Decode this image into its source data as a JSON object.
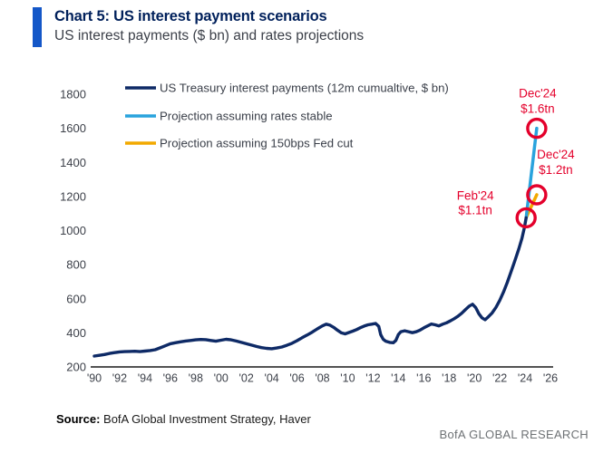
{
  "header": {
    "title": "Chart 5: US interest payment scenarios",
    "subtitle": "US interest payments ($ bn) and rates projections"
  },
  "footer": {
    "source_label": "Source:",
    "source_text": " BofA Global Investment Strategy, Haver",
    "brand": "BofA GLOBAL RESEARCH"
  },
  "colors": {
    "accent_bar": "#1457c8",
    "title_navy": "#00205b",
    "treasury_navy": "#0e2a66",
    "projection_blue": "#29a3dd",
    "projection_orange": "#f2a900",
    "annotation_red": "#e4002b",
    "axis_text": "#3c4049",
    "brand_gray": "#6e7275"
  },
  "chart_data": {
    "type": "line",
    "title": "Chart 5: US interest payment scenarios",
    "subtitle": "US interest payments ($ bn) and rates projections",
    "xlabel": "",
    "ylabel": "",
    "grid": false,
    "legend_position": "top-left",
    "x_range": [
      1990,
      2026
    ],
    "y_range": [
      200,
      1800
    ],
    "y_ticks": [
      1800,
      1600,
      1400,
      1200,
      1000,
      800,
      600,
      400,
      200
    ],
    "x_ticks": [
      {
        "year": 1990,
        "label": "'90"
      },
      {
        "year": 1992,
        "label": "'92"
      },
      {
        "year": 1994,
        "label": "'94"
      },
      {
        "year": 1996,
        "label": "'96"
      },
      {
        "year": 1998,
        "label": "'98"
      },
      {
        "year": 2000,
        "label": "'00"
      },
      {
        "year": 2002,
        "label": "'02"
      },
      {
        "year": 2004,
        "label": "'04"
      },
      {
        "year": 2006,
        "label": "'06"
      },
      {
        "year": 2008,
        "label": "'08"
      },
      {
        "year": 2010,
        "label": "'10"
      },
      {
        "year": 2012,
        "label": "'12"
      },
      {
        "year": 2014,
        "label": "'14"
      },
      {
        "year": 2016,
        "label": "'16"
      },
      {
        "year": 2018,
        "label": "'18"
      },
      {
        "year": 2020,
        "label": "'20"
      },
      {
        "year": 2022,
        "label": "'22"
      },
      {
        "year": 2024,
        "label": "'24"
      },
      {
        "year": 2026,
        "label": "'26"
      }
    ],
    "series": [
      {
        "name": "US Treasury interest payments (12m cumualtive, $ bn)",
        "color": "#0e2a66",
        "points": [
          [
            1990.0,
            264
          ],
          [
            1990.4,
            268
          ],
          [
            1990.8,
            273
          ],
          [
            1991.2,
            279
          ],
          [
            1991.6,
            284
          ],
          [
            1992.0,
            288
          ],
          [
            1992.4,
            290
          ],
          [
            1992.8,
            291
          ],
          [
            1993.2,
            292
          ],
          [
            1993.6,
            290
          ],
          [
            1994.0,
            293
          ],
          [
            1994.4,
            296
          ],
          [
            1994.8,
            301
          ],
          [
            1995.2,
            312
          ],
          [
            1995.6,
            324
          ],
          [
            1996.0,
            336
          ],
          [
            1996.4,
            342
          ],
          [
            1996.8,
            347
          ],
          [
            1997.2,
            352
          ],
          [
            1997.6,
            355
          ],
          [
            1998.0,
            359
          ],
          [
            1998.4,
            361
          ],
          [
            1998.8,
            360
          ],
          [
            1999.2,
            355
          ],
          [
            1999.6,
            351
          ],
          [
            2000.0,
            357
          ],
          [
            2000.4,
            362
          ],
          [
            2000.8,
            359
          ],
          [
            2001.2,
            352
          ],
          [
            2001.6,
            344
          ],
          [
            2002.0,
            336
          ],
          [
            2002.4,
            328
          ],
          [
            2002.8,
            320
          ],
          [
            2003.2,
            313
          ],
          [
            2003.6,
            309
          ],
          [
            2004.0,
            307
          ],
          [
            2004.4,
            311
          ],
          [
            2004.8,
            317
          ],
          [
            2005.2,
            327
          ],
          [
            2005.6,
            339
          ],
          [
            2006.0,
            354
          ],
          [
            2006.4,
            371
          ],
          [
            2006.8,
            387
          ],
          [
            2007.2,
            404
          ],
          [
            2007.6,
            423
          ],
          [
            2008.0,
            441
          ],
          [
            2008.3,
            451
          ],
          [
            2008.6,
            445
          ],
          [
            2008.9,
            432
          ],
          [
            2009.2,
            415
          ],
          [
            2009.5,
            400
          ],
          [
            2009.8,
            394
          ],
          [
            2010.1,
            402
          ],
          [
            2010.4,
            410
          ],
          [
            2010.7,
            419
          ],
          [
            2011.0,
            430
          ],
          [
            2011.3,
            440
          ],
          [
            2011.6,
            447
          ],
          [
            2011.9,
            451
          ],
          [
            2012.2,
            455
          ],
          [
            2012.45,
            438
          ],
          [
            2012.6,
            390
          ],
          [
            2012.8,
            362
          ],
          [
            2013.0,
            351
          ],
          [
            2013.3,
            344
          ],
          [
            2013.6,
            342
          ],
          [
            2013.8,
            355
          ],
          [
            2014.0,
            390
          ],
          [
            2014.2,
            407
          ],
          [
            2014.5,
            412
          ],
          [
            2014.8,
            407
          ],
          [
            2015.1,
            401
          ],
          [
            2015.4,
            406
          ],
          [
            2015.7,
            416
          ],
          [
            2016.0,
            429
          ],
          [
            2016.3,
            441
          ],
          [
            2016.6,
            452
          ],
          [
            2016.9,
            447
          ],
          [
            2017.2,
            441
          ],
          [
            2017.5,
            451
          ],
          [
            2017.8,
            459
          ],
          [
            2018.1,
            470
          ],
          [
            2018.4,
            483
          ],
          [
            2018.7,
            497
          ],
          [
            2019.0,
            515
          ],
          [
            2019.3,
            537
          ],
          [
            2019.6,
            557
          ],
          [
            2019.85,
            568
          ],
          [
            2020.1,
            548
          ],
          [
            2020.35,
            512
          ],
          [
            2020.6,
            488
          ],
          [
            2020.85,
            477
          ],
          [
            2021.1,
            494
          ],
          [
            2021.4,
            517
          ],
          [
            2021.7,
            549
          ],
          [
            2022.0,
            590
          ],
          [
            2022.3,
            640
          ],
          [
            2022.6,
            697
          ],
          [
            2022.9,
            760
          ],
          [
            2023.2,
            825
          ],
          [
            2023.5,
            892
          ],
          [
            2023.75,
            955
          ],
          [
            2023.95,
            1020
          ],
          [
            2024.08,
            1075
          ]
        ]
      },
      {
        "name": "Projection assuming rates stable",
        "color": "#29a3dd",
        "points": [
          [
            2024.08,
            1075
          ],
          [
            2024.92,
            1600
          ]
        ]
      },
      {
        "name": "Projection assuming 150bps Fed cut",
        "color": "#f2a900",
        "points": [
          [
            2024.08,
            1075
          ],
          [
            2024.92,
            1210
          ]
        ]
      }
    ],
    "annotations": [
      {
        "date": "Dec'24",
        "amount": "$1.6tn",
        "year": 2024.92,
        "value": 1600,
        "placement": "above"
      },
      {
        "date": "Dec'24",
        "amount": "$1.2tn",
        "year": 2024.92,
        "value": 1210,
        "placement": "right"
      },
      {
        "date": "Feb'24",
        "amount": "$1.1tn",
        "year": 2024.08,
        "value": 1075,
        "placement": "left"
      }
    ]
  }
}
